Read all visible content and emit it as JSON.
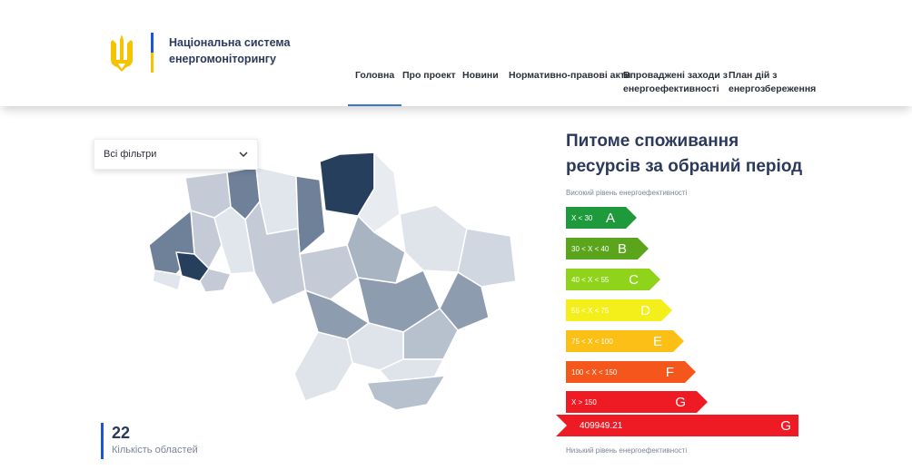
{
  "header": {
    "brand_line1": "Національна система",
    "brand_line2": "енергомоніторингу",
    "nav": [
      {
        "line1": "Головна",
        "line2": ""
      },
      {
        "line1": "Про проект",
        "line2": ""
      },
      {
        "line1": "Новини",
        "line2": ""
      },
      {
        "line1": "Нормативно-правові акти",
        "line2": ""
      },
      {
        "line1": "Впроваджені заходи з",
        "line2": "енергоефективності"
      },
      {
        "line1": "План дій з",
        "line2": "енергозбереження"
      }
    ],
    "active_index": 0
  },
  "filter": {
    "label": "Всі фільтри"
  },
  "counter": {
    "value": "22",
    "label": "Кількість областей"
  },
  "panel": {
    "title_line1": "Питоме споживання",
    "title_line2": "ресурсів за обраний період",
    "high_label": "Високий рівень енергоефективності",
    "low_label": "Низький рівень енергоефективності",
    "classes": [
      {
        "range": "X < 30",
        "letter": "A",
        "color": "#1e9a3c"
      },
      {
        "range": "30 < X < 40",
        "letter": "B",
        "color": "#5aa51c"
      },
      {
        "range": "40 < X < 55",
        "letter": "C",
        "color": "#8fd41a"
      },
      {
        "range": "55 < X < 75",
        "letter": "D",
        "color": "#f4ee1a"
      },
      {
        "range": "75 < X < 100",
        "letter": "E",
        "color": "#fbbf16"
      },
      {
        "range": "100 < X < 150",
        "letter": "F",
        "color": "#f5561c"
      },
      {
        "range": "X > 150",
        "letter": "G",
        "color": "#ee1b24"
      }
    ],
    "current": {
      "value": "409949.21",
      "letter": "G"
    }
  },
  "colors": {
    "accent": "#1a57d6",
    "flag_yellow": "#f4c400"
  }
}
